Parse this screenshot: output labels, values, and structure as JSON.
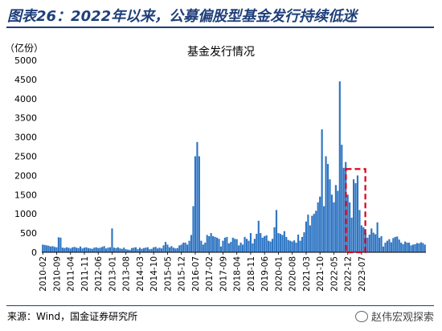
{
  "header": {
    "title": "图表26：2022年以来，公募偏股型基金发行持续低迷"
  },
  "footer": {
    "source": "来源：Wind，国金证券研究所",
    "watermark": "赵伟宏观探索"
  },
  "colors": {
    "bar": "#2e75c3",
    "title": "#1f3f7a",
    "highlight": "#d9001b"
  },
  "chart_data": {
    "type": "bar",
    "title": "基金发行情况",
    "ylabel": "（亿份）",
    "xlabel": "",
    "ylim": [
      0,
      5000
    ],
    "yticks": [
      0,
      500,
      1000,
      1500,
      2000,
      2500,
      3000,
      3500,
      4000,
      4500,
      5000
    ],
    "x_tick_labels": [
      "2010-02",
      "2010-09",
      "2011-04",
      "2011-11",
      "2012-06",
      "2013-01",
      "2013-08",
      "2014-03",
      "2014-10",
      "2015-05",
      "2015-12",
      "2016-07",
      "2017-02",
      "2017-09",
      "2018-04",
      "2018-11",
      "2019-06",
      "2020-01",
      "2020-08",
      "2021-03",
      "2021-10",
      "2022-05",
      "2022-12",
      "2023-07"
    ],
    "start_month": "2010-02",
    "values": [
      200,
      190,
      180,
      170,
      150,
      160,
      140,
      130,
      390,
      380,
      120,
      110,
      130,
      120,
      100,
      130,
      140,
      120,
      110,
      150,
      100,
      120,
      130,
      110,
      100,
      90,
      120,
      130,
      110,
      120,
      140,
      160,
      100,
      120,
      130,
      620,
      120,
      110,
      130,
      100,
      90,
      120,
      80,
      70,
      60,
      110,
      120,
      130,
      80,
      120,
      90,
      110,
      120,
      130,
      80,
      90,
      130,
      140,
      100,
      120,
      100,
      180,
      270,
      200,
      130,
      160,
      120,
      100,
      110,
      180,
      200,
      250,
      250,
      200,
      300,
      450,
      1200,
      2500,
      2870,
      2500,
      300,
      200,
      250,
      450,
      420,
      500,
      420,
      400,
      380,
      350,
      150,
      300,
      380,
      400,
      230,
      270,
      380,
      350,
      340,
      180,
      250,
      200,
      400,
      350,
      300,
      500,
      230,
      350,
      480,
      820,
      500,
      380,
      420,
      440,
      300,
      280,
      350,
      650,
      1100,
      500,
      480,
      450,
      550,
      400,
      320,
      300,
      280,
      310,
      250,
      460,
      300,
      400,
      520,
      800,
      980,
      700,
      950,
      1000,
      1080,
      1300,
      1450,
      3200,
      1200,
      2500,
      2300,
      1900,
      1500,
      1300,
      1750,
      1600,
      4450,
      2800,
      2200,
      2350,
      1500,
      1300,
      900,
      1900,
      1800,
      2000,
      1100,
      700,
      650,
      500,
      380,
      460,
      620,
      510,
      470,
      780,
      380,
      420,
      150,
      250,
      300,
      340,
      260,
      370,
      400,
      410,
      330,
      250,
      210,
      280,
      250,
      250,
      180,
      200,
      210,
      240,
      230,
      260,
      240,
      200
    ],
    "highlight_box": {
      "start": "2022-12",
      "end": "2023-08",
      "style": "red dashed"
    }
  }
}
